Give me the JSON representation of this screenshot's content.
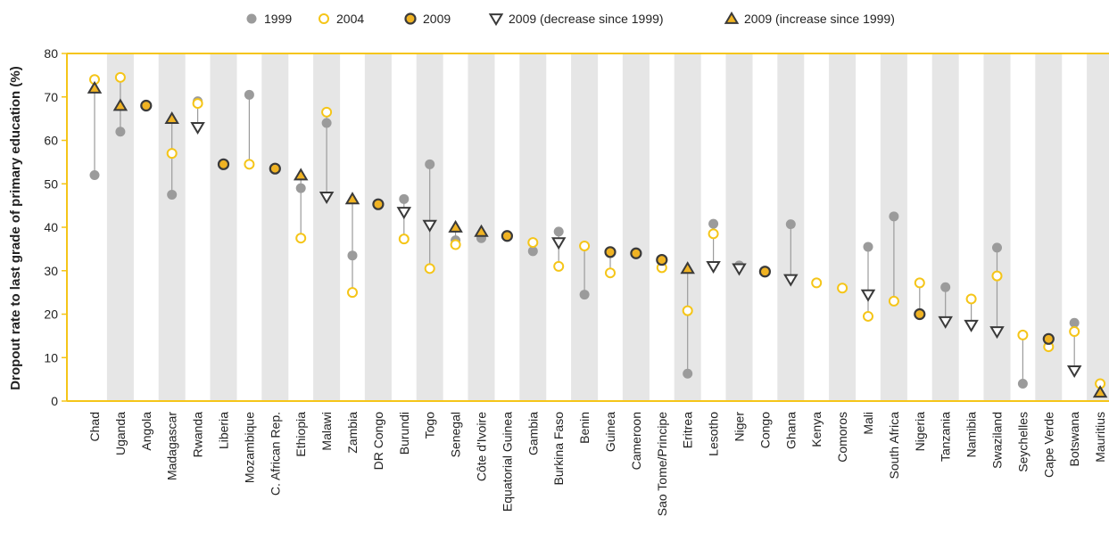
{
  "chart_data": {
    "type": "scatter",
    "ylabel": "Dropout rate to last grade of primary education (%)",
    "ylim": [
      0,
      80
    ],
    "yticks": [
      0,
      10,
      20,
      30,
      40,
      50,
      60,
      70,
      80
    ],
    "grid": "alternating vertical bands",
    "legend_position": "top",
    "legend": [
      {
        "key": "y1999",
        "label": "1999"
      },
      {
        "key": "y2004",
        "label": "2004"
      },
      {
        "key": "y2009",
        "label": "2009"
      },
      {
        "key": "dec",
        "label": "2009 (decrease since 1999)"
      },
      {
        "key": "inc",
        "label": "2009 (increase since 1999)"
      }
    ],
    "colors": {
      "y1999": "#9b9b9b",
      "y2004": "#f5c518",
      "marker_fill": "#f0b323",
      "marker_edge": "#3a3a3a",
      "axis": "#f5c518",
      "band": "#e6e6e6",
      "connector": "#9b9b9b"
    },
    "categories": [
      {
        "name": "Chad",
        "y1999": 52,
        "y2004": 74,
        "y2009": 72,
        "trend": "inc"
      },
      {
        "name": "Uganda",
        "y1999": 62,
        "y2004": 74.5,
        "y2009": 68,
        "trend": "inc"
      },
      {
        "name": "Angola",
        "y1999": null,
        "y2004": null,
        "y2009": 68,
        "trend": "none"
      },
      {
        "name": "Madagascar",
        "y1999": 47.5,
        "y2004": 57,
        "y2009": 65,
        "trend": "inc"
      },
      {
        "name": "Rwanda",
        "y1999": 69,
        "y2004": 68.5,
        "y2009": 63,
        "trend": "dec"
      },
      {
        "name": "Liberia",
        "y1999": null,
        "y2004": null,
        "y2009": 54.5,
        "trend": "none"
      },
      {
        "name": "Mozambique",
        "y1999": 70.5,
        "y2004": 54.5,
        "y2009": null,
        "trend": "none"
      },
      {
        "name": "C. African Rep.",
        "y1999": null,
        "y2004": null,
        "y2009": 53.5,
        "trend": "none"
      },
      {
        "name": "Ethiopia",
        "y1999": 49,
        "y2004": 37.5,
        "y2009": 52,
        "trend": "inc"
      },
      {
        "name": "Malawi",
        "y1999": 64,
        "y2004": 66.5,
        "y2009": 47,
        "trend": "dec"
      },
      {
        "name": "Zambia",
        "y1999": 33.5,
        "y2004": 25,
        "y2009": 46.5,
        "trend": "inc"
      },
      {
        "name": "DR Congo",
        "y1999": null,
        "y2004": null,
        "y2009": 45.3,
        "trend": "none"
      },
      {
        "name": "Burundi",
        "y1999": 46.5,
        "y2004": 37.3,
        "y2009": 43.5,
        "trend": "dec"
      },
      {
        "name": "Togo",
        "y1999": 54.5,
        "y2004": 30.5,
        "y2009": 40.5,
        "trend": "dec"
      },
      {
        "name": "Senegal",
        "y1999": 37,
        "y2004": 36,
        "y2009": 40,
        "trend": "inc"
      },
      {
        "name": "Côte d'Ivoire",
        "y1999": 37.5,
        "y2004": null,
        "y2009": 39,
        "trend": "inc"
      },
      {
        "name": "Equatorial Guinea",
        "y1999": null,
        "y2004": null,
        "y2009": 38,
        "trend": "none"
      },
      {
        "name": "Gambia",
        "y1999": 34.5,
        "y2004": 36.5,
        "y2009": null,
        "trend": "none"
      },
      {
        "name": "Burkina Faso",
        "y1999": 39,
        "y2004": 31,
        "y2009": 36.5,
        "trend": "dec"
      },
      {
        "name": "Benin",
        "y1999": 24.5,
        "y2004": 35.7,
        "y2009": null,
        "trend": "none"
      },
      {
        "name": "Guinea",
        "y1999": null,
        "y2004": 29.5,
        "y2009": 34.3,
        "trend": "none"
      },
      {
        "name": "Cameroon",
        "y1999": null,
        "y2004": null,
        "y2009": 34,
        "trend": "none"
      },
      {
        "name": "Sao Tome/Principe",
        "y1999": null,
        "y2004": 30.7,
        "y2009": 32.5,
        "trend": "none"
      },
      {
        "name": "Eritrea",
        "y1999": 6.3,
        "y2004": 20.8,
        "y2009": 30.5,
        "trend": "inc"
      },
      {
        "name": "Lesotho",
        "y1999": 40.8,
        "y2004": 38.5,
        "y2009": 31,
        "trend": "dec"
      },
      {
        "name": "Niger",
        "y1999": 31.2,
        "y2004": null,
        "y2009": 30.5,
        "trend": "dec"
      },
      {
        "name": "Congo",
        "y1999": null,
        "y2004": null,
        "y2009": 29.8,
        "trend": "none"
      },
      {
        "name": "Ghana",
        "y1999": 40.7,
        "y2004": null,
        "y2009": 28,
        "trend": "dec"
      },
      {
        "name": "Kenya",
        "y1999": null,
        "y2004": 27.2,
        "y2009": null,
        "trend": "none"
      },
      {
        "name": "Comoros",
        "y1999": null,
        "y2004": 26,
        "y2009": null,
        "trend": "none"
      },
      {
        "name": "Mali",
        "y1999": 35.5,
        "y2004": 19.5,
        "y2009": 24.5,
        "trend": "dec"
      },
      {
        "name": "South Africa",
        "y1999": 42.5,
        "y2004": 23,
        "y2009": null,
        "trend": "none"
      },
      {
        "name": "Nigeria",
        "y1999": null,
        "y2004": 27.2,
        "y2009": 20,
        "trend": "none"
      },
      {
        "name": "Tanzania",
        "y1999": 26.2,
        "y2004": null,
        "y2009": 18.3,
        "trend": "dec"
      },
      {
        "name": "Namibia",
        "y1999": null,
        "y2004": 23.5,
        "y2009": 17.5,
        "trend": "dec"
      },
      {
        "name": "Swaziland",
        "y1999": 35.3,
        "y2004": 28.8,
        "y2009": 16,
        "trend": "dec"
      },
      {
        "name": "Seychelles",
        "y1999": 4,
        "y2004": 15.2,
        "y2009": null,
        "trend": "none"
      },
      {
        "name": "Cape Verde",
        "y1999": null,
        "y2004": 12.5,
        "y2009": 14.3,
        "trend": "none"
      },
      {
        "name": "Botswana",
        "y1999": 18,
        "y2004": 16,
        "y2009": 7,
        "trend": "dec"
      },
      {
        "name": "Mauritius",
        "y1999": null,
        "y2004": 4,
        "y2009": 2,
        "trend": "inc"
      }
    ]
  }
}
